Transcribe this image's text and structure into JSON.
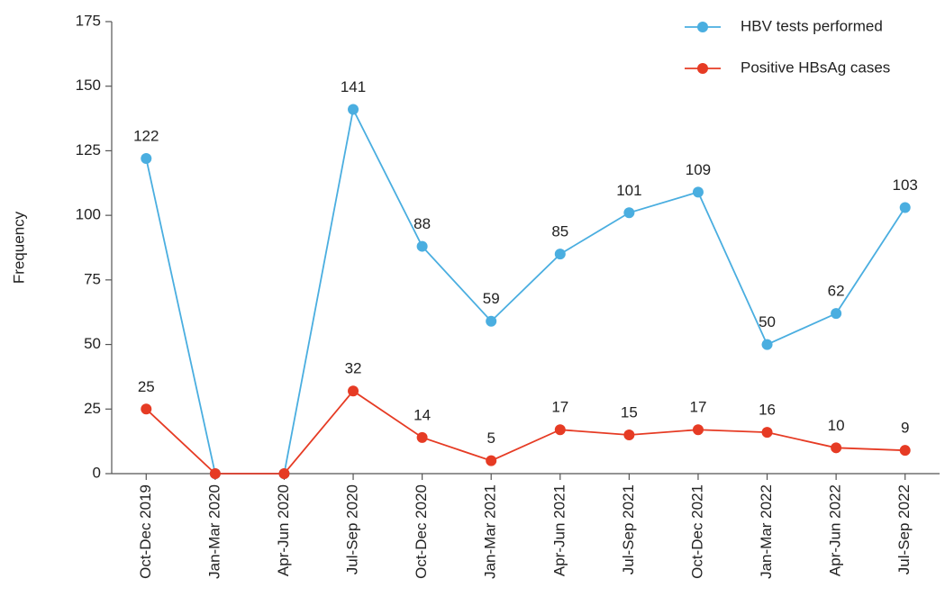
{
  "chart_data": {
    "type": "line",
    "y_label": "Frequency",
    "categories": [
      "Oct-Dec 2019",
      "Jan-Mar 2020",
      "Apr-Jun 2020",
      "Jul-Sep 2020",
      "Oct-Dec 2020",
      "Jan-Mar 2021",
      "Apr-Jun 2021",
      "Jul-Sep 2021",
      "Oct-Dec 2021",
      "Jan-Mar 2022",
      "Apr-Jun 2022",
      "Jul-Sep 2022"
    ],
    "series": [
      {
        "name": "HBV tests performed",
        "color": "#4aaee0",
        "values": [
          122,
          0,
          0,
          141,
          88,
          59,
          85,
          101,
          109,
          50,
          62,
          103
        ],
        "value_labels": [
          "122",
          null,
          null,
          "141",
          "88",
          "59",
          "85",
          "101",
          "109",
          "50",
          "62",
          "103"
        ]
      },
      {
        "name": "Positive HBsAg cases",
        "color": "#e63b24",
        "values": [
          25,
          0,
          0,
          32,
          14,
          5,
          17,
          15,
          17,
          16,
          10,
          9
        ],
        "value_labels": [
          "25",
          null,
          null,
          "32",
          "14",
          "5",
          "17",
          "15",
          "17",
          "16",
          "10",
          "9"
        ]
      }
    ],
    "ylim": [
      0,
      175
    ],
    "yticks": [
      0,
      25,
      50,
      75,
      100,
      125,
      150,
      175
    ],
    "legend": "top-right",
    "grid": false
  }
}
